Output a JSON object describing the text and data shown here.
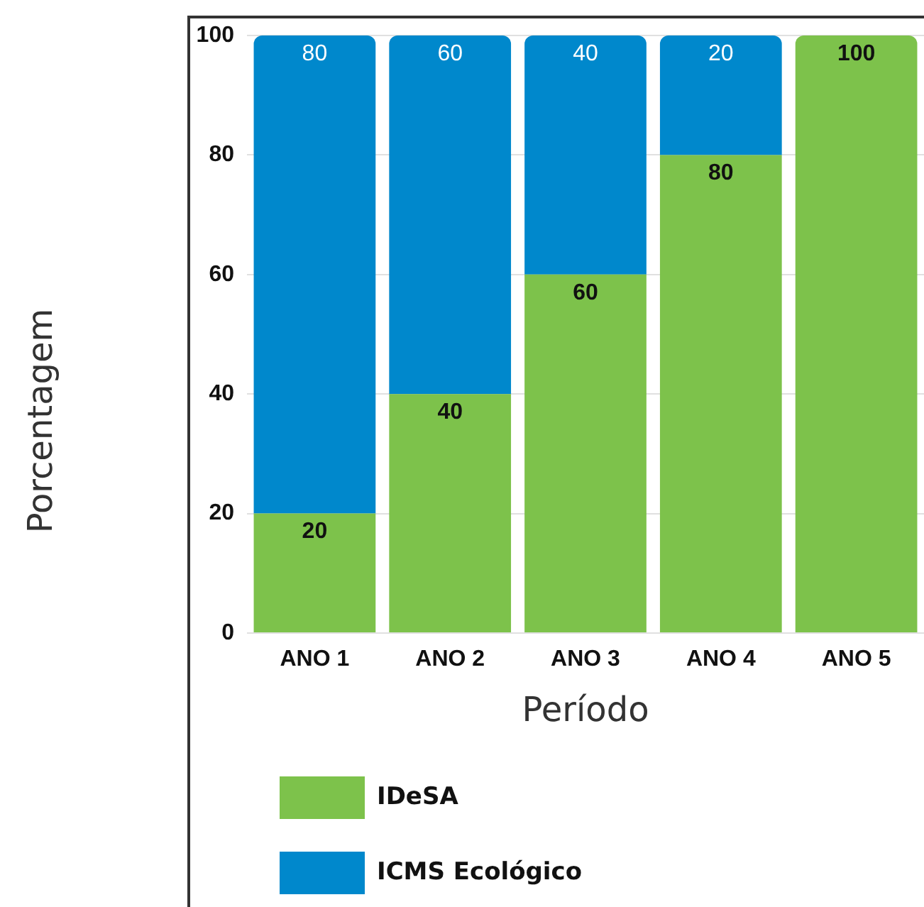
{
  "chart_data": {
    "type": "bar",
    "stacked": true,
    "categories": [
      "ANO 1",
      "ANO 2",
      "ANO 3",
      "ANO 4",
      "ANO 5"
    ],
    "series": [
      {
        "name": "IDeSA",
        "color": "#7dc24b",
        "values": [
          20,
          40,
          60,
          80,
          100
        ],
        "value_labels": [
          "20",
          "40",
          "60",
          "80",
          "100"
        ]
      },
      {
        "name": "ICMS Ecológico",
        "color": "#0088cc",
        "values": [
          80,
          60,
          40,
          20,
          0
        ],
        "value_labels": [
          "80",
          "60",
          "40",
          "20",
          null
        ]
      }
    ],
    "xlabel": "Período",
    "ylabel": "Porcentagem",
    "ylim": [
      0,
      100
    ],
    "yticks": [
      0,
      20,
      40,
      60,
      80,
      100
    ],
    "grid": "y",
    "legend": "bottom left"
  }
}
